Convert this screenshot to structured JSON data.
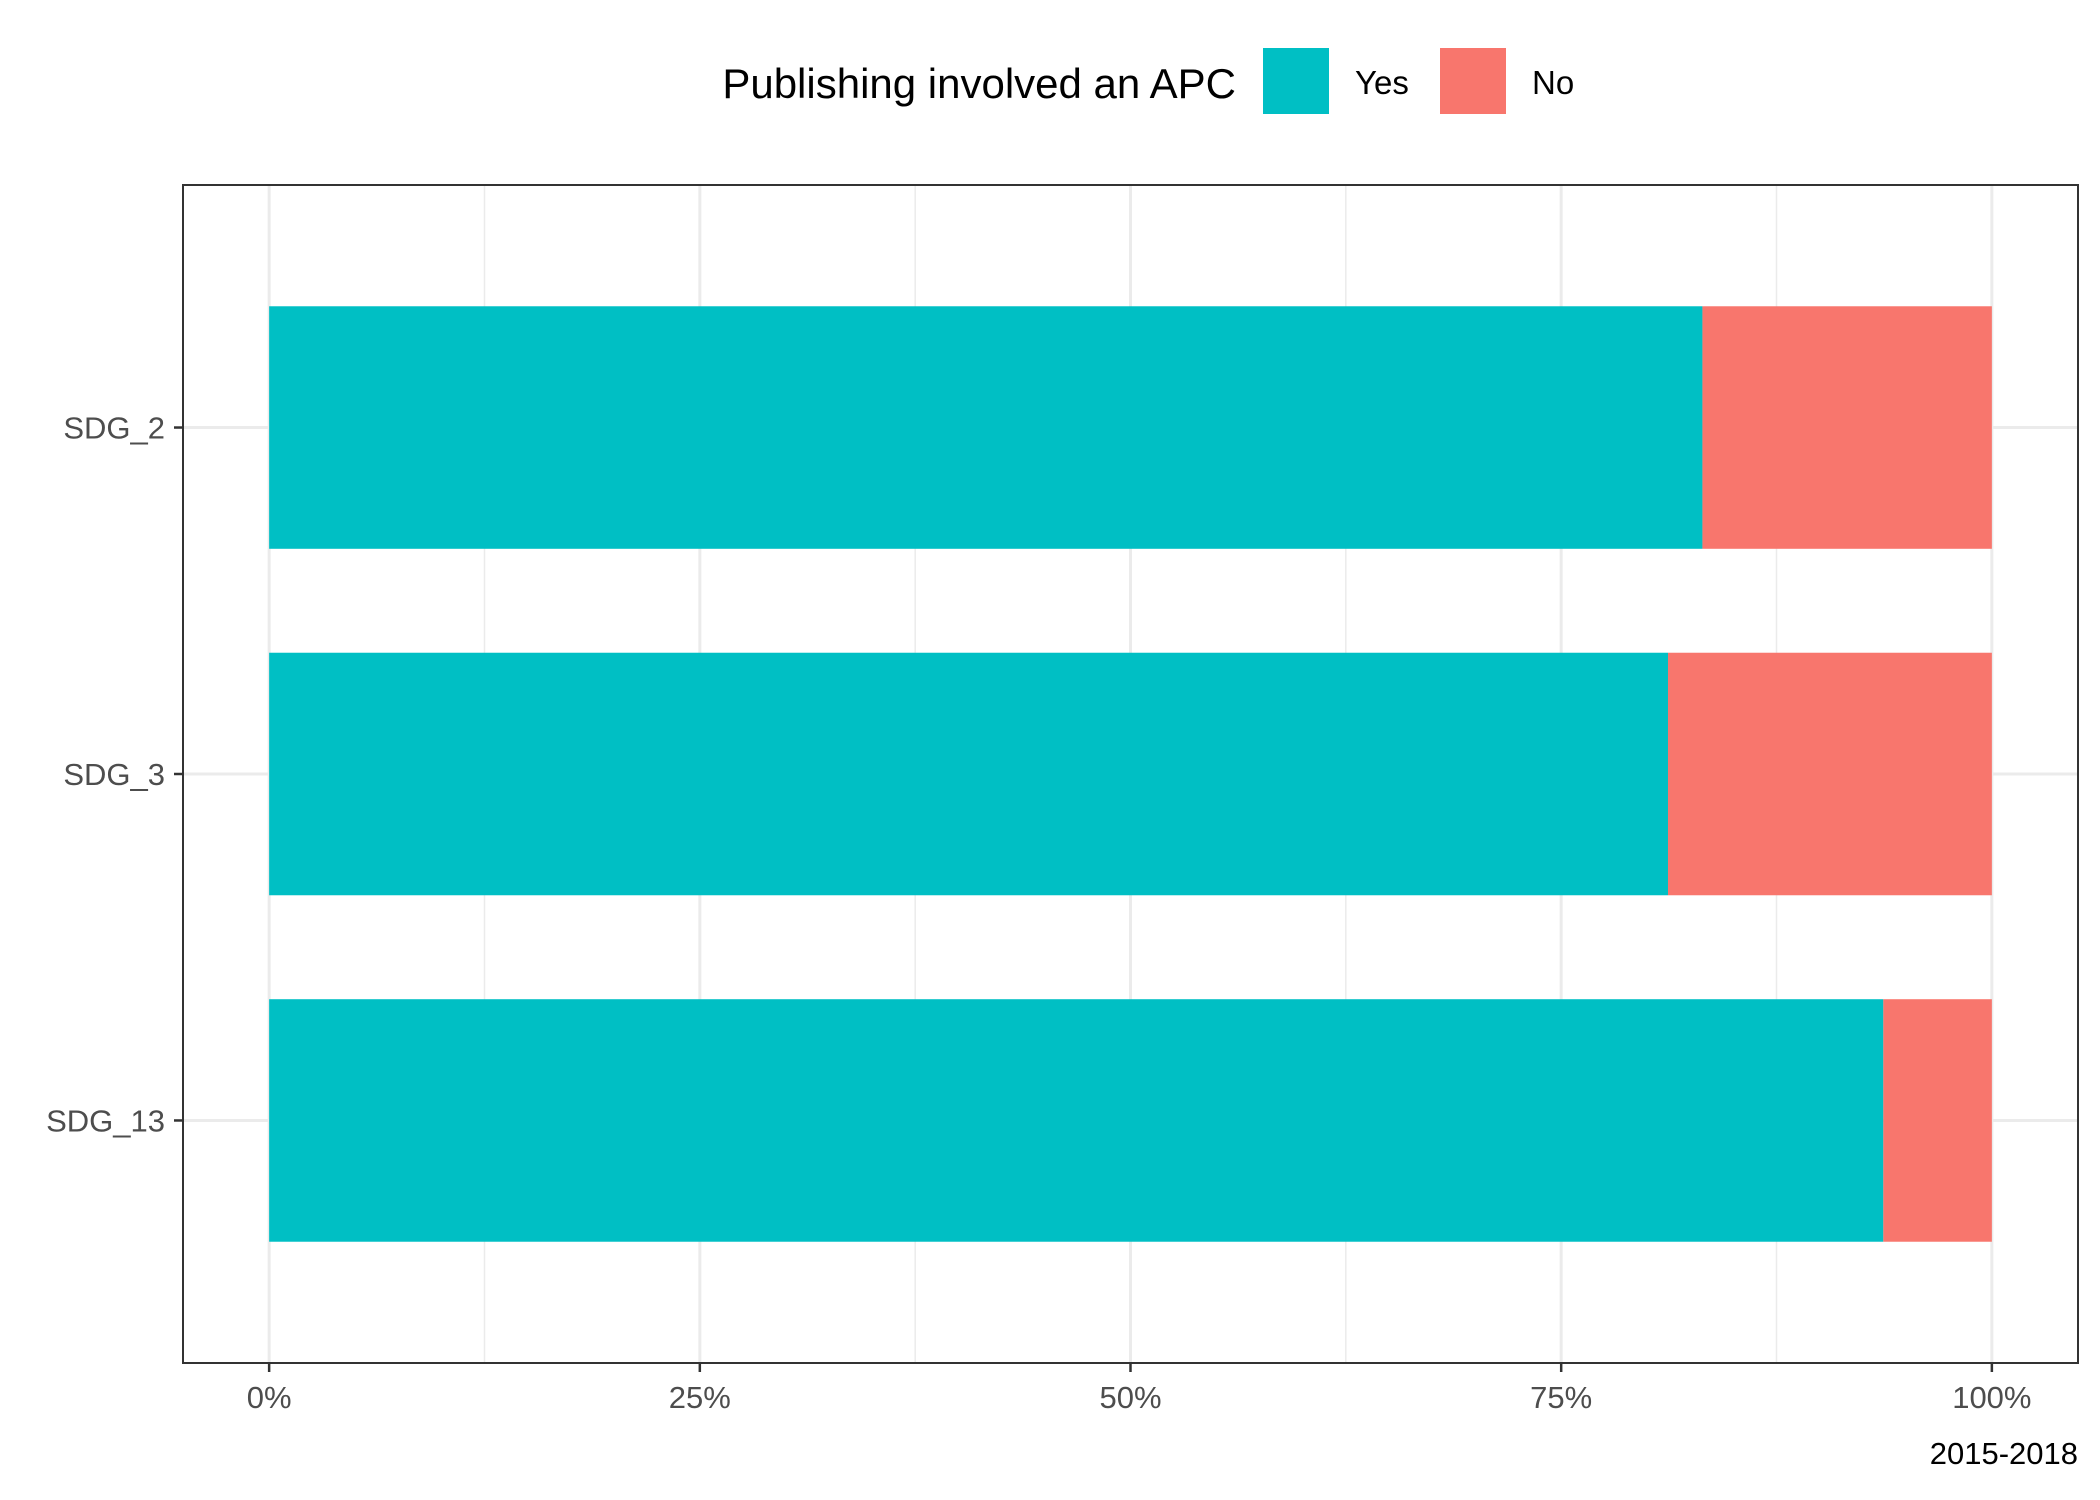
{
  "chart_data": {
    "type": "bar",
    "orientation": "horizontal",
    "stacked": true,
    "normalized": true,
    "categories": [
      "SDG_2",
      "SDG_3",
      "SDG_13"
    ],
    "series": [
      {
        "name": "Yes",
        "values": [
          83.2,
          81.2,
          93.7
        ],
        "color": "#00BFC4"
      },
      {
        "name": "No",
        "values": [
          16.8,
          18.8,
          6.3
        ],
        "color": "#F8766D"
      }
    ],
    "xlim": [
      -5,
      105
    ],
    "xticks": [
      0,
      25,
      50,
      75,
      100
    ],
    "xtick_labels": [
      "0%",
      "25%",
      "50%",
      "75%",
      "100%"
    ],
    "xminor": [
      12.5,
      37.5,
      62.5,
      87.5
    ],
    "legend": {
      "title": "Publishing involved an APC",
      "position": "top",
      "items": [
        "Yes",
        "No"
      ]
    },
    "caption": "2015-2018",
    "grid": true,
    "xlabel": "",
    "ylabel": ""
  }
}
